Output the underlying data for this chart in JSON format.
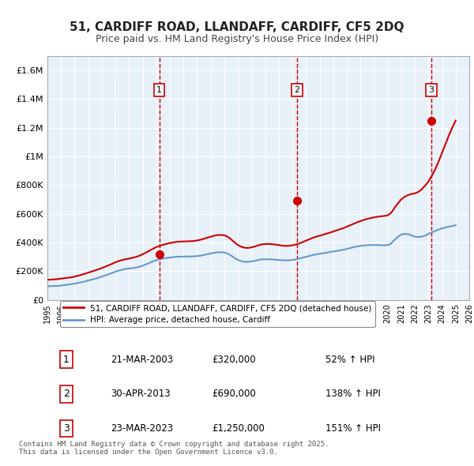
{
  "title": "51, CARDIFF ROAD, LLANDAFF, CARDIFF, CF5 2DQ",
  "subtitle": "Price paid vs. HM Land Registry's House Price Index (HPI)",
  "title_fontsize": 11,
  "subtitle_fontsize": 9,
  "background_color": "#ffffff",
  "plot_bg_color": "#e8f0f8",
  "grid_color": "#ffffff",
  "red_line_color": "#cc0000",
  "blue_line_color": "#6699cc",
  "vline_color": "#cc0000",
  "sale_marker_color": "#cc0000",
  "xlim_min": 1995,
  "xlim_max": 2026,
  "ylim_min": 0,
  "ylim_max": 1700000,
  "ytick_values": [
    0,
    200000,
    400000,
    600000,
    800000,
    1000000,
    1200000,
    1400000,
    1600000
  ],
  "ytick_labels": [
    "£0",
    "£200K",
    "£400K",
    "£600K",
    "£800K",
    "£1M",
    "£1.2M",
    "£1.4M",
    "£1.6M"
  ],
  "xtick_years": [
    1995,
    1996,
    1997,
    1998,
    1999,
    2000,
    2001,
    2002,
    2003,
    2004,
    2005,
    2006,
    2007,
    2008,
    2009,
    2010,
    2011,
    2012,
    2013,
    2014,
    2015,
    2016,
    2017,
    2018,
    2019,
    2020,
    2021,
    2022,
    2023,
    2024,
    2025,
    2026
  ],
  "sale_dates": [
    2003.22,
    2013.33,
    2023.22
  ],
  "sale_prices": [
    320000,
    690000,
    1250000
  ],
  "sale_labels": [
    "1",
    "2",
    "3"
  ],
  "legend_line1": "51, CARDIFF ROAD, LLANDAFF, CARDIFF, CF5 2DQ (detached house)",
  "legend_line2": "HPI: Average price, detached house, Cardiff",
  "table_rows": [
    {
      "num": "1",
      "date": "21-MAR-2003",
      "price": "£320,000",
      "hpi": "52% ↑ HPI"
    },
    {
      "num": "2",
      "date": "30-APR-2013",
      "price": "£690,000",
      "hpi": "138% ↑ HPI"
    },
    {
      "num": "3",
      "date": "23-MAR-2023",
      "price": "£1,250,000",
      "hpi": "151% ↑ HPI"
    }
  ],
  "footer": "Contains HM Land Registry data © Crown copyright and database right 2025.\nThis data is licensed under the Open Government Licence v3.0.",
  "hpi_years": [
    1995.0,
    1995.25,
    1995.5,
    1995.75,
    1996.0,
    1996.25,
    1996.5,
    1996.75,
    1997.0,
    1997.25,
    1997.5,
    1997.75,
    1998.0,
    1998.25,
    1998.5,
    1998.75,
    1999.0,
    1999.25,
    1999.5,
    1999.75,
    2000.0,
    2000.25,
    2000.5,
    2000.75,
    2001.0,
    2001.25,
    2001.5,
    2001.75,
    2002.0,
    2002.25,
    2002.5,
    2002.75,
    2003.0,
    2003.25,
    2003.5,
    2003.75,
    2004.0,
    2004.25,
    2004.5,
    2004.75,
    2005.0,
    2005.25,
    2005.5,
    2005.75,
    2006.0,
    2006.25,
    2006.5,
    2006.75,
    2007.0,
    2007.25,
    2007.5,
    2007.75,
    2008.0,
    2008.25,
    2008.5,
    2008.75,
    2009.0,
    2009.25,
    2009.5,
    2009.75,
    2010.0,
    2010.25,
    2010.5,
    2010.75,
    2011.0,
    2011.25,
    2011.5,
    2011.75,
    2012.0,
    2012.25,
    2012.5,
    2012.75,
    2013.0,
    2013.25,
    2013.5,
    2013.75,
    2014.0,
    2014.25,
    2014.5,
    2014.75,
    2015.0,
    2015.25,
    2015.5,
    2015.75,
    2016.0,
    2016.25,
    2016.5,
    2016.75,
    2017.0,
    2017.25,
    2017.5,
    2017.75,
    2018.0,
    2018.25,
    2018.5,
    2018.75,
    2019.0,
    2019.25,
    2019.5,
    2019.75,
    2020.0,
    2020.25,
    2020.5,
    2020.75,
    2021.0,
    2021.25,
    2021.5,
    2021.75,
    2022.0,
    2022.25,
    2022.5,
    2022.75,
    2023.0,
    2023.25,
    2023.5,
    2023.75,
    2024.0,
    2024.25,
    2024.5,
    2024.75,
    2025.0
  ],
  "hpi_values": [
    95000,
    96000,
    96500,
    97000,
    100000,
    103000,
    106000,
    109000,
    113000,
    118000,
    123000,
    128000,
    135000,
    141000,
    147000,
    154000,
    162000,
    170000,
    178000,
    187000,
    196000,
    204000,
    210000,
    215000,
    218000,
    221000,
    225000,
    230000,
    238000,
    248000,
    258000,
    268000,
    276000,
    282000,
    288000,
    292000,
    295000,
    298000,
    300000,
    301000,
    301500,
    302000,
    302500,
    303000,
    305000,
    308000,
    313000,
    318000,
    323000,
    328000,
    332000,
    332000,
    330000,
    322000,
    308000,
    292000,
    278000,
    270000,
    265000,
    265000,
    268000,
    272000,
    278000,
    282000,
    283000,
    283000,
    282000,
    280000,
    278000,
    276000,
    275000,
    276000,
    278000,
    282000,
    288000,
    294000,
    300000,
    306000,
    312000,
    317000,
    321000,
    325000,
    329000,
    333000,
    337000,
    341000,
    345000,
    349000,
    355000,
    361000,
    367000,
    372000,
    376000,
    379000,
    381000,
    382000,
    382000,
    382000,
    381000,
    380000,
    381000,
    392000,
    418000,
    438000,
    455000,
    460000,
    458000,
    450000,
    440000,
    438000,
    440000,
    448000,
    460000,
    470000,
    480000,
    490000,
    498000,
    505000,
    510000,
    515000,
    520000
  ],
  "property_years": [
    1995.0,
    1995.25,
    1995.5,
    1995.75,
    1996.0,
    1996.25,
    1996.5,
    1996.75,
    1997.0,
    1997.25,
    1997.5,
    1997.75,
    1998.0,
    1998.25,
    1998.5,
    1998.75,
    1999.0,
    1999.25,
    1999.5,
    1999.75,
    2000.0,
    2000.25,
    2000.5,
    2000.75,
    2001.0,
    2001.25,
    2001.5,
    2001.75,
    2002.0,
    2002.25,
    2002.5,
    2002.75,
    2003.0,
    2003.25,
    2003.5,
    2003.75,
    2004.0,
    2004.25,
    2004.5,
    2004.75,
    2005.0,
    2005.25,
    2005.5,
    2005.75,
    2006.0,
    2006.25,
    2006.5,
    2006.75,
    2007.0,
    2007.25,
    2007.5,
    2007.75,
    2008.0,
    2008.25,
    2008.5,
    2008.75,
    2009.0,
    2009.25,
    2009.5,
    2009.75,
    2010.0,
    2010.25,
    2010.5,
    2010.75,
    2011.0,
    2011.25,
    2011.5,
    2011.75,
    2012.0,
    2012.25,
    2012.5,
    2012.75,
    2013.0,
    2013.25,
    2013.5,
    2013.75,
    2014.0,
    2014.25,
    2014.5,
    2014.75,
    2015.0,
    2015.25,
    2015.5,
    2015.75,
    2016.0,
    2016.25,
    2016.5,
    2016.75,
    2017.0,
    2017.25,
    2017.5,
    2017.75,
    2018.0,
    2018.25,
    2018.5,
    2018.75,
    2019.0,
    2019.25,
    2019.5,
    2019.75,
    2020.0,
    2020.25,
    2020.5,
    2020.75,
    2021.0,
    2021.25,
    2021.5,
    2021.75,
    2022.0,
    2022.25,
    2022.5,
    2022.75,
    2023.0,
    2023.25,
    2023.5,
    2023.75,
    2024.0,
    2024.25,
    2024.5,
    2024.75,
    2025.0
  ],
  "property_values": [
    140000,
    141000,
    143000,
    145000,
    148000,
    151000,
    154000,
    157000,
    162000,
    168000,
    175000,
    182000,
    190000,
    197000,
    205000,
    213000,
    222000,
    231000,
    241000,
    251000,
    262000,
    271000,
    278000,
    283000,
    288000,
    293000,
    299000,
    307000,
    318000,
    330000,
    343000,
    356000,
    368000,
    376000,
    384000,
    390000,
    396000,
    400000,
    404000,
    406000,
    407000,
    408000,
    409000,
    410000,
    414000,
    419000,
    426000,
    433000,
    440000,
    447000,
    452000,
    452000,
    450000,
    440000,
    422000,
    400000,
    382000,
    370000,
    363000,
    362000,
    366000,
    372000,
    380000,
    387000,
    389000,
    390000,
    388000,
    385000,
    382000,
    378000,
    376000,
    377000,
    380000,
    385000,
    393000,
    402000,
    413000,
    422000,
    432000,
    440000,
    447000,
    454000,
    461000,
    468000,
    476000,
    484000,
    492000,
    500000,
    510000,
    520000,
    530000,
    540000,
    549000,
    557000,
    564000,
    570000,
    575000,
    579000,
    582000,
    585000,
    589000,
    605000,
    640000,
    672000,
    700000,
    718000,
    730000,
    738000,
    742000,
    752000,
    770000,
    795000,
    825000,
    865000,
    910000,
    965000,
    1025000,
    1085000,
    1145000,
    1200000,
    1250000
  ]
}
